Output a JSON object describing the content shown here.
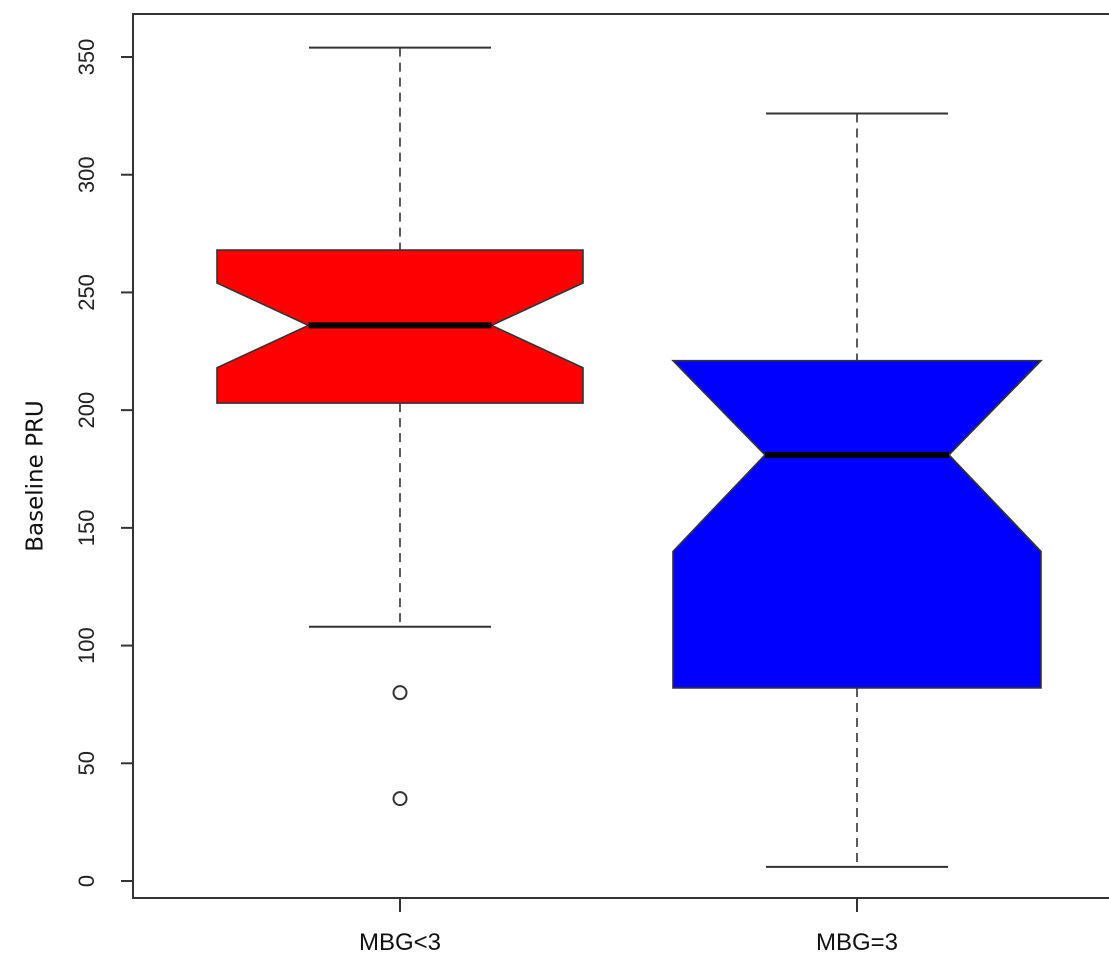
{
  "chart_data": {
    "type": "boxplot",
    "notched": true,
    "title": "",
    "xlabel": "",
    "ylabel": "Baseline PRU",
    "ylim": [
      -5,
      370
    ],
    "y_ticks": [
      0,
      50,
      100,
      150,
      200,
      250,
      300,
      350
    ],
    "grid": false,
    "categories": [
      "MBG<3",
      "MBG=3"
    ],
    "boxes": [
      {
        "category": "MBG<3",
        "color": "#ff0000",
        "whisker_low": 108,
        "q1": 203,
        "notch_low": 218,
        "median": 236,
        "notch_high": 254,
        "q3": 268,
        "whisker_high": 354,
        "outliers": [
          80,
          35
        ]
      },
      {
        "category": "MBG=3",
        "color": "#0000ff",
        "whisker_low": 6,
        "q1": 82,
        "notch_low": 140,
        "median": 181,
        "notch_high": 221,
        "q3": 221,
        "whisker_high": 326,
        "outliers": []
      }
    ]
  }
}
